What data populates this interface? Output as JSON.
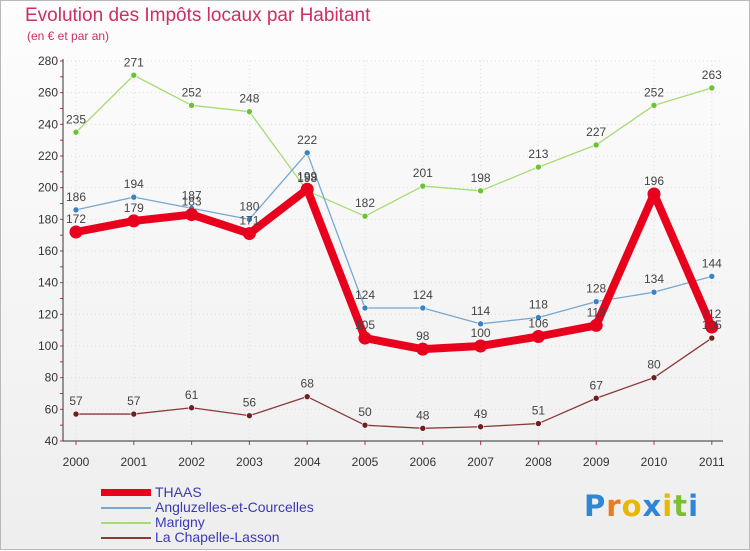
{
  "chart_data": {
    "type": "line",
    "title": "Evolution des Impôts locaux par Habitant",
    "subtitle": "(en € et par an)",
    "xlabel": "",
    "ylabel": "",
    "categories": [
      "2000",
      "2001",
      "2002",
      "2003",
      "2004",
      "2005",
      "2006",
      "2007",
      "2008",
      "2009",
      "2010",
      "2011"
    ],
    "y_ticks": [
      40,
      60,
      80,
      100,
      120,
      140,
      160,
      180,
      200,
      220,
      240,
      260,
      280
    ],
    "ylim": [
      40,
      280
    ],
    "grid": true,
    "legend_position": "bottom-left",
    "series": [
      {
        "name": "THAAS",
        "color": "#e8001c",
        "point_color": "#e8001c",
        "values": [
          172,
          179,
          183,
          171,
          199,
          105,
          98,
          100,
          106,
          113,
          196,
          112
        ],
        "labels": [
          "172",
          "179",
          "183",
          "171",
          "199",
          "105",
          "98",
          "100",
          "106",
          "113",
          "196",
          "112"
        ]
      },
      {
        "name": "Angluzelles-et-Courcelles",
        "color": "#78a8d0",
        "point_color": "#3b82c4",
        "values": [
          186,
          194,
          187,
          180,
          222,
          124,
          124,
          114,
          118,
          128,
          134,
          144
        ],
        "labels": [
          "186",
          "194",
          "187",
          "180",
          "222",
          "124",
          "124",
          "114",
          "118",
          "128",
          "134",
          "144"
        ]
      },
      {
        "name": "Marigny",
        "color": "#a6dc74",
        "point_color": "#6cc234",
        "values": [
          235,
          271,
          252,
          248,
          198,
          182,
          201,
          198,
          213,
          227,
          252,
          263
        ],
        "labels": [
          "235",
          "271",
          "252",
          "248",
          "198",
          "182",
          "201",
          "198",
          "213",
          "227",
          "252",
          "263"
        ]
      },
      {
        "name": "La Chapelle-Lasson",
        "color": "#8c3a3a",
        "point_color": "#6e1f1f",
        "values": [
          57,
          57,
          61,
          56,
          68,
          50,
          48,
          49,
          51,
          67,
          80,
          105
        ],
        "labels": [
          "57",
          "57",
          "61",
          "56",
          "68",
          "50",
          "48",
          "49",
          "51",
          "67",
          "80",
          "105"
        ]
      }
    ]
  },
  "brand": {
    "letters": [
      "P",
      "r",
      "o",
      "x",
      "i",
      "t",
      "i"
    ],
    "colors": [
      "#2e86d6",
      "#ef7a1a",
      "#e8b800",
      "#2e86d6",
      "#e8b800",
      "#7cbf34",
      "#2e86d6"
    ]
  }
}
